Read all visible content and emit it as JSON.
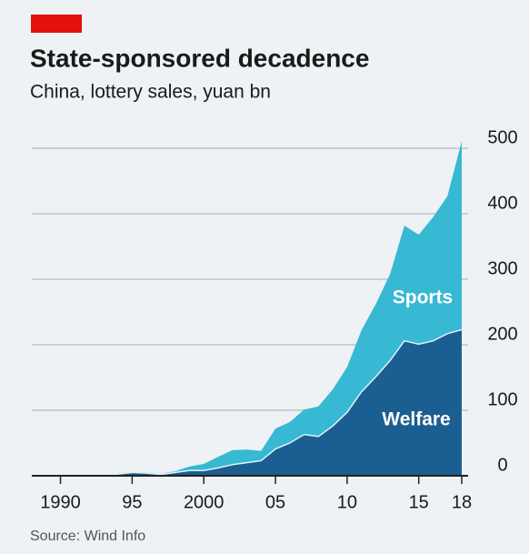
{
  "chart_data": {
    "type": "stacked-area",
    "title": "State-sponsored decadence",
    "subtitle": "China, lottery sales, yuan bn",
    "source": "Source: Wind Info",
    "x": [
      1988,
      1989,
      1990,
      1991,
      1992,
      1993,
      1994,
      1995,
      1996,
      1997,
      1998,
      1999,
      2000,
      2001,
      2002,
      2003,
      2004,
      2005,
      2006,
      2007,
      2008,
      2009,
      2010,
      2011,
      2012,
      2013,
      2014,
      2015,
      2016,
      2017,
      2018
    ],
    "series": [
      {
        "name": "Welfare",
        "color": "#1b5e91",
        "values": [
          0.4,
          0.5,
          1,
          1.5,
          2,
          2,
          2.5,
          5,
          4,
          2,
          5,
          8,
          8,
          12,
          17,
          20,
          23,
          41,
          50,
          63,
          60,
          76,
          97,
          128,
          151,
          176,
          206,
          201,
          206,
          217,
          223
        ]
      },
      {
        "name": "Sports",
        "color": "#37b8d3",
        "values": [
          0,
          0,
          0,
          0,
          0,
          0,
          1,
          1,
          1,
          1,
          2,
          6,
          10,
          17,
          22,
          20,
          15,
          31,
          32,
          38,
          46,
          56,
          69,
          94,
          111,
          132,
          176,
          167,
          189,
          210,
          288
        ]
      }
    ],
    "xlim": [
      1988,
      2018
    ],
    "xticks": [
      1990,
      {
        "value": 1995,
        "label": "95"
      },
      2000,
      {
        "value": 2005,
        "label": "05"
      },
      {
        "value": 2010,
        "label": "10"
      },
      {
        "value": 2015,
        "label": "15"
      },
      {
        "value": 2018,
        "label": "18"
      }
    ],
    "ylim": [
      0,
      500
    ],
    "yticks": [
      0,
      100,
      200,
      300,
      400,
      500
    ],
    "grid": true
  }
}
